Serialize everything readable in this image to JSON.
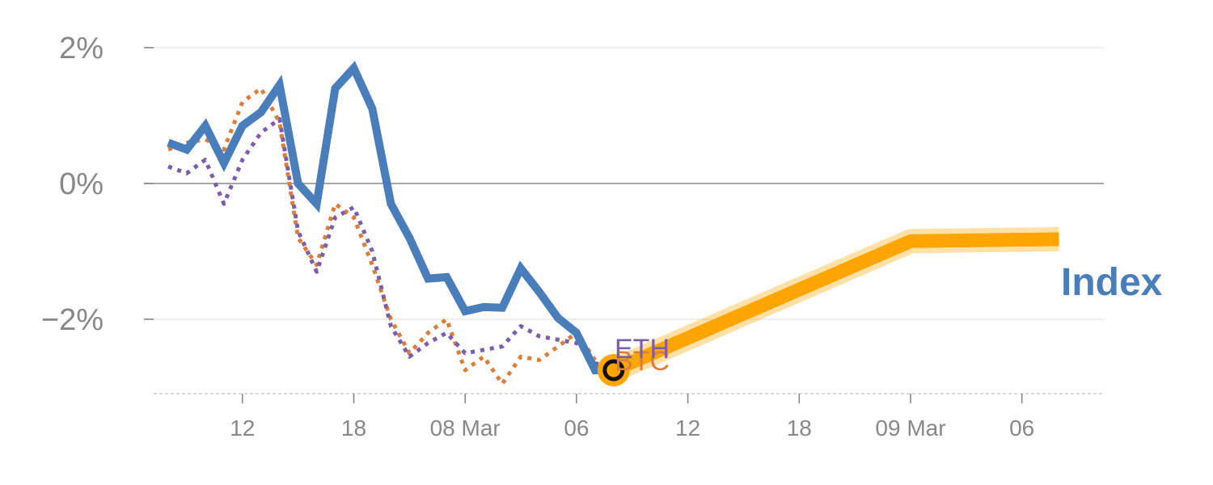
{
  "chart_data": {
    "type": "line",
    "title": "",
    "xlabel": "",
    "ylabel": "",
    "ylim": [
      -3.1,
      2.2
    ],
    "grid": true,
    "xticks": [
      {
        "x": 4,
        "label": "12"
      },
      {
        "x": 10,
        "label": "18"
      },
      {
        "x": 16,
        "label": "08 Mar"
      },
      {
        "x": 22,
        "label": "06"
      },
      {
        "x": 28,
        "label": "12"
      },
      {
        "x": 34,
        "label": "18"
      },
      {
        "x": 40,
        "label": "09 Mar"
      },
      {
        "x": 46,
        "label": "06"
      }
    ],
    "yticks": [
      {
        "value": 2,
        "label": "2%"
      },
      {
        "value": 0,
        "label": "0%"
      },
      {
        "value": -2,
        "label": "−2%"
      }
    ],
    "series": [
      {
        "name": "Index",
        "style": "solid",
        "color": "#4a7ebb",
        "x": [
          0,
          1,
          2,
          3,
          4,
          5,
          6,
          7,
          8,
          9,
          10,
          11,
          12,
          13,
          14,
          15,
          16,
          17,
          18,
          19,
          20,
          21,
          22,
          23,
          24
        ],
        "values": [
          0.6,
          0.5,
          0.85,
          0.3,
          0.85,
          1.05,
          1.45,
          0.0,
          -0.3,
          1.4,
          1.7,
          1.1,
          -0.3,
          -0.8,
          -1.4,
          -1.38,
          -1.88,
          -1.82,
          -1.83,
          -1.25,
          -1.6,
          -1.98,
          -2.2,
          -2.75,
          -2.75
        ]
      },
      {
        "name": "BTC",
        "style": "dotted",
        "color": "#d97f3b",
        "x": [
          0,
          1,
          2,
          3,
          4,
          5,
          6,
          7,
          8,
          9,
          10,
          11,
          12,
          13,
          14,
          15,
          16,
          17,
          18,
          19,
          20,
          21,
          22,
          23,
          24
        ],
        "values": [
          0.5,
          0.6,
          0.65,
          0.5,
          1.2,
          1.4,
          0.9,
          -0.8,
          -1.2,
          -0.3,
          -0.5,
          -1.2,
          -2.0,
          -2.5,
          -2.2,
          -2.0,
          -2.75,
          -2.55,
          -2.95,
          -2.55,
          -2.6,
          -2.4,
          -2.2,
          -2.6,
          -2.7
        ]
      },
      {
        "name": "ETH",
        "style": "dotted",
        "color": "#7b5ea7",
        "x": [
          0,
          1,
          2,
          3,
          4,
          5,
          6,
          7,
          8,
          9,
          10,
          11,
          12,
          13,
          14,
          15,
          16,
          17,
          18,
          19,
          20,
          21,
          22,
          23,
          24
        ],
        "values": [
          0.25,
          0.15,
          0.35,
          -0.3,
          0.35,
          0.75,
          0.95,
          -0.7,
          -1.3,
          -0.5,
          -0.35,
          -1.0,
          -2.1,
          -2.55,
          -2.35,
          -2.2,
          -2.5,
          -2.45,
          -2.4,
          -2.1,
          -2.25,
          -2.3,
          -2.35,
          -2.65,
          -2.7
        ]
      },
      {
        "name": "",
        "style": "projection",
        "color": "#ffa500",
        "x": [
          24,
          40,
          48
        ],
        "values": [
          -2.75,
          -0.85,
          -0.82
        ]
      }
    ],
    "marker": {
      "x": 24,
      "value": -2.75
    }
  },
  "labels": {
    "index": "Index",
    "btc": "BTC",
    "eth": "ETH"
  },
  "colors": {
    "index": "#4a7ebb",
    "btc": "#d97f3b",
    "eth": "#7b5ea7",
    "projection": "#ffa500",
    "axis": "#888888"
  }
}
